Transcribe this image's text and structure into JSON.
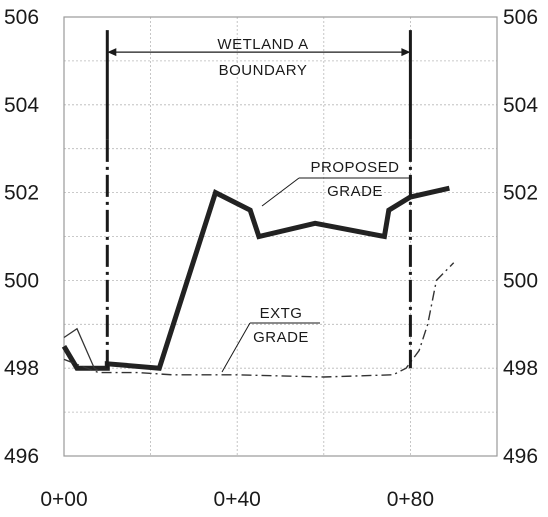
{
  "chart_data": {
    "type": "line",
    "title": "",
    "xlabel": "",
    "ylabel": "",
    "xlim": [
      0,
      100
    ],
    "ylim": [
      496,
      506
    ],
    "x_ticks": [
      {
        "value": 0,
        "label": "0+00"
      },
      {
        "value": 40,
        "label": "0+40"
      },
      {
        "value": 80,
        "label": "0+80"
      }
    ],
    "y_ticks": [
      {
        "value": 496,
        "label": "496"
      },
      {
        "value": 498,
        "label": "498"
      },
      {
        "value": 500,
        "label": "500"
      },
      {
        "value": 502,
        "label": "502"
      },
      {
        "value": 504,
        "label": "504"
      },
      {
        "value": 506,
        "label": "506"
      }
    ],
    "grid": true,
    "series": [
      {
        "style": "thick-solid",
        "color": "#222222",
        "points": [
          [
            0,
            498.5
          ],
          [
            3,
            498.0
          ],
          [
            10,
            498.0
          ],
          [
            10,
            498.1
          ],
          [
            22,
            498.0
          ],
          [
            35,
            502.0
          ],
          [
            43,
            501.6
          ],
          [
            45,
            501.0
          ],
          [
            58,
            501.3
          ],
          [
            74,
            501.0
          ],
          [
            75,
            501.6
          ],
          [
            80,
            501.9
          ],
          [
            89,
            502.1
          ]
        ]
      },
      {
        "style": "dash-dot",
        "color": "#333333",
        "points": [
          [
            0,
            498.2
          ],
          [
            8,
            497.9
          ],
          [
            17,
            497.9
          ],
          [
            25,
            497.85
          ],
          [
            40,
            497.85
          ],
          [
            60,
            497.8
          ],
          [
            76,
            497.85
          ],
          [
            79,
            498.0
          ],
          [
            82,
            498.4
          ],
          [
            84,
            499.0
          ],
          [
            86,
            500.0
          ],
          [
            90,
            500.4
          ]
        ]
      },
      {
        "style": "thin-solid",
        "color": "#333333",
        "points": [
          [
            0,
            498.7
          ],
          [
            3,
            498.9
          ],
          [
            7,
            498.0
          ],
          [
            8,
            497.95
          ]
        ]
      }
    ],
    "annotations": [
      {
        "lines": [
          "WETLAND A",
          "BOUNDARY"
        ],
        "type": "dimension",
        "x1": 10,
        "x2": 80,
        "y": 505.2
      },
      {
        "lines": [
          "PROPOSED",
          "GRADE"
        ],
        "type": "leader"
      },
      {
        "lines": [
          "EXTG",
          "GRADE"
        ],
        "type": "leader"
      }
    ]
  }
}
